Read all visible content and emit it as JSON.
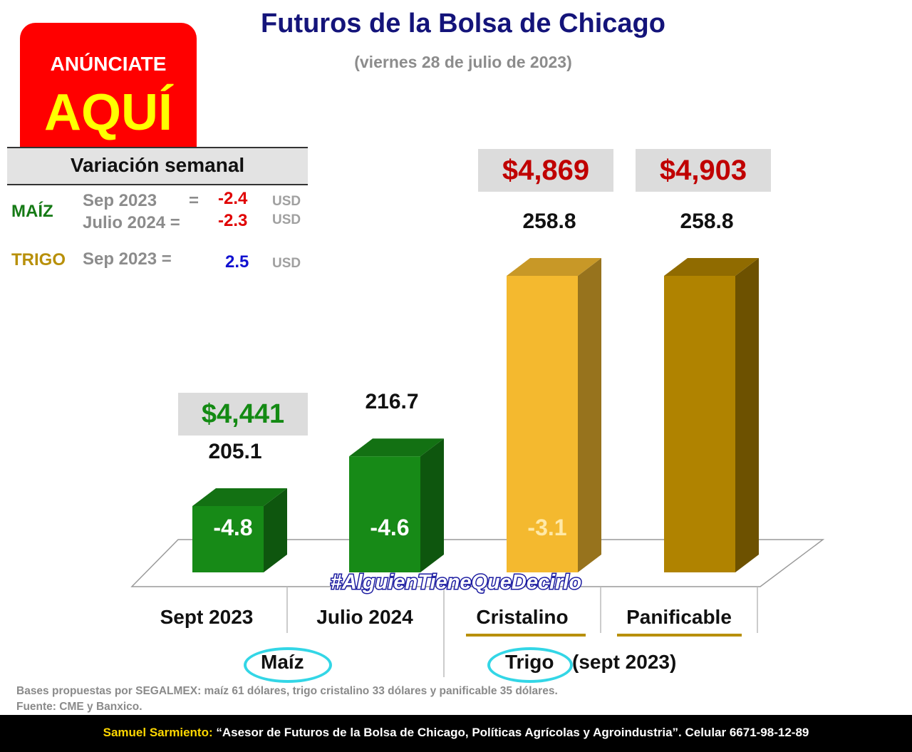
{
  "header": {
    "title": "Futuros de la Bolsa de Chicago",
    "subtitle": "(viernes 28 de julio de 2023)"
  },
  "ad": {
    "line1": "ANÚNCIATE",
    "line2": "AQUÍ"
  },
  "weekly": {
    "title": "Variación semanal",
    "maiz_label": "MAÍZ",
    "trigo_label": "TRIGO",
    "rows": [
      {
        "label": "Sep 2023",
        "eq": "=",
        "value": "-2.4",
        "unit": "USD"
      },
      {
        "label": "Julio 2024 =",
        "eq": "",
        "value": "-2.3",
        "unit": "USD"
      },
      {
        "label": "Sep 2023 =",
        "eq": "",
        "value": "2.5",
        "unit": "USD"
      }
    ]
  },
  "chart_data": {
    "type": "bar",
    "title": "Futuros de la Bolsa de Chicago",
    "categories": [
      "Sept 2023",
      "Julio 2024",
      "Cristalino",
      "Panificable"
    ],
    "groups": [
      {
        "name": "Maíz",
        "categories": [
          "Sept 2023",
          "Julio 2024"
        ]
      },
      {
        "name": "Trigo",
        "suffix": "(sept 2023)",
        "categories": [
          "Cristalino",
          "Panificable"
        ]
      }
    ],
    "values": [
      205.1,
      216.7,
      258.8,
      258.8
    ],
    "value_labels": [
      "205.1",
      "216.7",
      "258.8",
      "258.8"
    ],
    "weekly_change": [
      "-4.8",
      "-4.6",
      "-3.1",
      ""
    ],
    "peso_prices": [
      "$4,441",
      "",
      "$4,869",
      "$4,903"
    ],
    "colors": [
      "#178a17",
      "#178a17",
      "#f4b92f",
      "#b08300"
    ],
    "price_colors": {
      "maiz": "#138a13",
      "trigo": "#c00000"
    },
    "hashtag": "#AlguienTieneQueDecirlo"
  },
  "notes": {
    "bases": "Bases propuestas por SEGALMEX: maíz 61 dólares, trigo cristalino 33 dólares y panificable 35 dólares.",
    "source": "Fuente: CME y Banxico."
  },
  "footer": {
    "name": "Samuel Sarmiento:",
    "text": " “Asesor de Futuros de la Bolsa de Chicago, Políticas Agrícolas y Agroindustria”. Celular 6671-98-12-89"
  }
}
